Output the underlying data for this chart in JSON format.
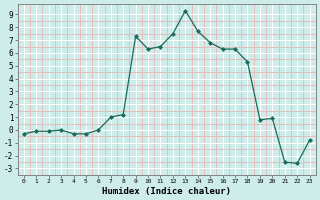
{
  "x": [
    0,
    1,
    2,
    3,
    4,
    5,
    6,
    7,
    8,
    9,
    10,
    11,
    12,
    13,
    14,
    15,
    16,
    17,
    18,
    19,
    20,
    21,
    22,
    23
  ],
  "y": [
    -0.3,
    -0.1,
    -0.1,
    0.0,
    -0.3,
    -0.3,
    0.0,
    1.0,
    1.2,
    7.3,
    6.3,
    6.5,
    7.5,
    9.3,
    7.7,
    6.8,
    6.3,
    6.3,
    5.3,
    0.8,
    0.9,
    -2.5,
    -2.6,
    -0.8
  ],
  "xlabel": "Humidex (Indice chaleur)",
  "line_color": "#1a6b5a",
  "marker": "D",
  "marker_size": 2,
  "bg_color": "#cdecea",
  "grid_major_color": "#ffffff",
  "grid_minor_color": "#e8b8b8",
  "xlim": [
    -0.5,
    23.5
  ],
  "ylim": [
    -3.5,
    9.8
  ],
  "xticks": [
    0,
    1,
    2,
    3,
    4,
    5,
    6,
    7,
    8,
    9,
    10,
    11,
    12,
    13,
    14,
    15,
    16,
    17,
    18,
    19,
    20,
    21,
    22,
    23
  ],
  "yticks": [
    -3,
    -2,
    -1,
    0,
    1,
    2,
    3,
    4,
    5,
    6,
    7,
    8,
    9
  ]
}
